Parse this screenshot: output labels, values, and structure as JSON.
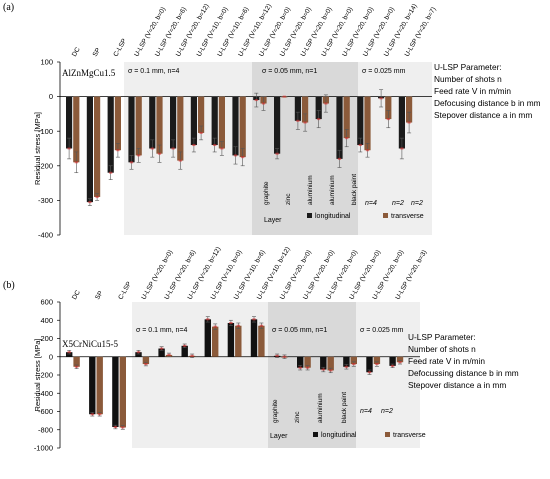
{
  "chart_data": [
    {
      "panel": "(a)",
      "type": "bar",
      "material": "AlZnMgCu1.5",
      "ylabel": "Residual stress [MPa]",
      "ylim": [
        -400,
        100
      ],
      "yticks": [
        "100",
        "0",
        "-100",
        "-200",
        "-300",
        "-400"
      ],
      "categories": [
        "DC",
        "SP",
        "C-LSP",
        "U-LSP (V=20, b=0)",
        "U-LSP (V=20, b=6)",
        "U-LSP (V=20, b=12)",
        "U-LSP (V=10, b=0)",
        "U-LSP (V=10, b=6)",
        "U-LSP (V=10, b=12)",
        "U-LSP (V=20, b=0)",
        "U-LSP (V=20, b=0)",
        "U-LSP (V=20, b=0)",
        "U-LSP (V=20, b=0)",
        "U-LSP (V=20, b=0)",
        "U-LSP (V=20, b=0)",
        "U-LSP (V=20, b=14)",
        "U-LSP (V=20, b=7)"
      ],
      "series": [
        {
          "name": "longitudinal",
          "values": [
            -150,
            -305,
            -220,
            -190,
            -150,
            -150,
            -140,
            -140,
            -170,
            -10,
            -165,
            -70,
            -65,
            -180,
            -140,
            -5,
            -150
          ]
        },
        {
          "name": "transverse",
          "values": [
            -190,
            -290,
            -155,
            -170,
            -165,
            -185,
            -105,
            -150,
            -175,
            -20,
            0,
            -75,
            -20,
            -120,
            -155,
            -65,
            -75
          ]
        }
      ],
      "errors": [
        [
          30,
          10,
          20,
          20,
          25,
          25,
          20,
          20,
          25,
          20,
          15,
          25,
          25,
          25,
          20,
          25,
          30
        ],
        [
          30,
          10,
          20,
          20,
          25,
          25,
          20,
          20,
          25,
          20,
          0,
          25,
          25,
          25,
          20,
          25,
          30
        ]
      ],
      "sections": [
        {
          "label": "σ = 0.1 mm, n=4"
        },
        {
          "label": "σ = 0.05 mm, n=1"
        },
        {
          "label": "σ = 0.025 mm"
        }
      ],
      "layer_title": "Layer",
      "layer_labels": [
        "graphite",
        "zinc",
        "aluminium",
        "aluminium",
        "black paint"
      ],
      "n_labels": [
        "n=4",
        "n=2",
        "n=2"
      ],
      "param_title": "U-LSP Parameter:",
      "param_lines": [
        "Number of shots n",
        "Feed rate V in m/min",
        "Defocusing distance b in mm",
        "Stepover distance a in mm"
      ],
      "colors": {
        "longitudinal": "#1b1b1b",
        "transverse": "#8b5a3a",
        "error_red": "#e02020",
        "section1": "#efefef",
        "section2": "#d9d9d9",
        "section3": "#efefef"
      }
    },
    {
      "panel": "(b)",
      "type": "bar",
      "material": "X5CrNiCu15-5",
      "ylabel": "Residual stress [MPa]",
      "ylim": [
        -1000,
        600
      ],
      "yticks": [
        "600",
        "400",
        "200",
        "0",
        "-200",
        "-400",
        "-600",
        "-800",
        "-1000"
      ],
      "categories": [
        "DC",
        "SP",
        "C-LSP",
        "U-LSP (V=20, b=0)",
        "U-LSP (V=20, b=6)",
        "U-LSP (V=20, b=12)",
        "U-LSP (V=10, b=0)",
        "U-LSP (V=10, b=6)",
        "U-LSP (V=10, b=12)",
        "U-LSP (V=20, b=0)",
        "U-LSP (V=20, b=0)",
        "U-LSP (V=20, b=0)",
        "U-LSP (V=20, b=0)",
        "U-LSP (V=20, b=0)",
        "U-LSP (V=20, b=3)"
      ],
      "series": [
        {
          "name": "longitudinal",
          "values": [
            50,
            -630,
            -770,
            50,
            90,
            120,
            410,
            370,
            410,
            10,
            -120,
            -140,
            -110,
            -170,
            -100
          ]
        },
        {
          "name": "transverse",
          "values": [
            -110,
            -630,
            -775,
            -80,
            20,
            10,
            330,
            340,
            340,
            0,
            -120,
            -150,
            -80,
            -80,
            -60
          ]
        }
      ],
      "errors": [
        [
          20,
          20,
          20,
          20,
          20,
          20,
          30,
          30,
          30,
          20,
          25,
          25,
          25,
          25,
          20
        ],
        [
          20,
          20,
          20,
          20,
          20,
          20,
          30,
          30,
          30,
          20,
          25,
          25,
          25,
          25,
          20
        ]
      ],
      "sections": [
        {
          "label": "σ = 0.1 mm, n=4"
        },
        {
          "label": "σ = 0.05 mm, n=1"
        },
        {
          "label": "σ = 0.025 mm"
        }
      ],
      "layer_title": "Layer",
      "layer_labels": [
        "graphite",
        "zinc",
        "aluminium",
        "black paint"
      ],
      "n_labels": [
        "n=4",
        "n=2"
      ],
      "param_title": "U-LSP Parameter:",
      "param_lines": [
        "Number of shots n",
        "Feed rate V in m/min",
        "Defocussing distance b in mm",
        "Stepover distance a in mm"
      ],
      "colors": {
        "longitudinal": "#111111",
        "transverse": "#8b5a3a",
        "error_red": "#e02020",
        "section1": "#efefef",
        "section2": "#d9d9d9",
        "section3": "#efefef"
      }
    }
  ],
  "legend": {
    "longitudinal": "longitudinal",
    "transverse": "transverse"
  }
}
